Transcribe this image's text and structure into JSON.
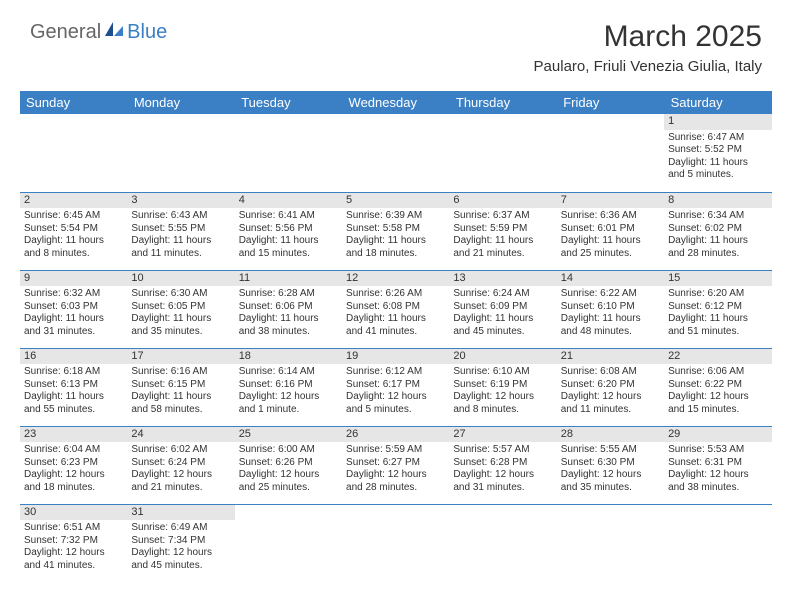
{
  "logo": {
    "part1": "General",
    "part2": "Blue"
  },
  "title": "March 2025",
  "location": "Paularo, Friuli Venezia Giulia, Italy",
  "weekdays": [
    "Sunday",
    "Monday",
    "Tuesday",
    "Wednesday",
    "Thursday",
    "Friday",
    "Saturday"
  ],
  "colors": {
    "header_bg": "#3b7fc4",
    "header_fg": "#ffffff",
    "daynum_bg": "#e6e6e6",
    "border": "#3b7fc4"
  },
  "weeks": [
    [
      null,
      null,
      null,
      null,
      null,
      null,
      {
        "n": "1",
        "sr": "Sunrise: 6:47 AM",
        "ss": "Sunset: 5:52 PM",
        "d1": "Daylight: 11 hours",
        "d2": "and 5 minutes."
      }
    ],
    [
      {
        "n": "2",
        "sr": "Sunrise: 6:45 AM",
        "ss": "Sunset: 5:54 PM",
        "d1": "Daylight: 11 hours",
        "d2": "and 8 minutes."
      },
      {
        "n": "3",
        "sr": "Sunrise: 6:43 AM",
        "ss": "Sunset: 5:55 PM",
        "d1": "Daylight: 11 hours",
        "d2": "and 11 minutes."
      },
      {
        "n": "4",
        "sr": "Sunrise: 6:41 AM",
        "ss": "Sunset: 5:56 PM",
        "d1": "Daylight: 11 hours",
        "d2": "and 15 minutes."
      },
      {
        "n": "5",
        "sr": "Sunrise: 6:39 AM",
        "ss": "Sunset: 5:58 PM",
        "d1": "Daylight: 11 hours",
        "d2": "and 18 minutes."
      },
      {
        "n": "6",
        "sr": "Sunrise: 6:37 AM",
        "ss": "Sunset: 5:59 PM",
        "d1": "Daylight: 11 hours",
        "d2": "and 21 minutes."
      },
      {
        "n": "7",
        "sr": "Sunrise: 6:36 AM",
        "ss": "Sunset: 6:01 PM",
        "d1": "Daylight: 11 hours",
        "d2": "and 25 minutes."
      },
      {
        "n": "8",
        "sr": "Sunrise: 6:34 AM",
        "ss": "Sunset: 6:02 PM",
        "d1": "Daylight: 11 hours",
        "d2": "and 28 minutes."
      }
    ],
    [
      {
        "n": "9",
        "sr": "Sunrise: 6:32 AM",
        "ss": "Sunset: 6:03 PM",
        "d1": "Daylight: 11 hours",
        "d2": "and 31 minutes."
      },
      {
        "n": "10",
        "sr": "Sunrise: 6:30 AM",
        "ss": "Sunset: 6:05 PM",
        "d1": "Daylight: 11 hours",
        "d2": "and 35 minutes."
      },
      {
        "n": "11",
        "sr": "Sunrise: 6:28 AM",
        "ss": "Sunset: 6:06 PM",
        "d1": "Daylight: 11 hours",
        "d2": "and 38 minutes."
      },
      {
        "n": "12",
        "sr": "Sunrise: 6:26 AM",
        "ss": "Sunset: 6:08 PM",
        "d1": "Daylight: 11 hours",
        "d2": "and 41 minutes."
      },
      {
        "n": "13",
        "sr": "Sunrise: 6:24 AM",
        "ss": "Sunset: 6:09 PM",
        "d1": "Daylight: 11 hours",
        "d2": "and 45 minutes."
      },
      {
        "n": "14",
        "sr": "Sunrise: 6:22 AM",
        "ss": "Sunset: 6:10 PM",
        "d1": "Daylight: 11 hours",
        "d2": "and 48 minutes."
      },
      {
        "n": "15",
        "sr": "Sunrise: 6:20 AM",
        "ss": "Sunset: 6:12 PM",
        "d1": "Daylight: 11 hours",
        "d2": "and 51 minutes."
      }
    ],
    [
      {
        "n": "16",
        "sr": "Sunrise: 6:18 AM",
        "ss": "Sunset: 6:13 PM",
        "d1": "Daylight: 11 hours",
        "d2": "and 55 minutes."
      },
      {
        "n": "17",
        "sr": "Sunrise: 6:16 AM",
        "ss": "Sunset: 6:15 PM",
        "d1": "Daylight: 11 hours",
        "d2": "and 58 minutes."
      },
      {
        "n": "18",
        "sr": "Sunrise: 6:14 AM",
        "ss": "Sunset: 6:16 PM",
        "d1": "Daylight: 12 hours",
        "d2": "and 1 minute."
      },
      {
        "n": "19",
        "sr": "Sunrise: 6:12 AM",
        "ss": "Sunset: 6:17 PM",
        "d1": "Daylight: 12 hours",
        "d2": "and 5 minutes."
      },
      {
        "n": "20",
        "sr": "Sunrise: 6:10 AM",
        "ss": "Sunset: 6:19 PM",
        "d1": "Daylight: 12 hours",
        "d2": "and 8 minutes."
      },
      {
        "n": "21",
        "sr": "Sunrise: 6:08 AM",
        "ss": "Sunset: 6:20 PM",
        "d1": "Daylight: 12 hours",
        "d2": "and 11 minutes."
      },
      {
        "n": "22",
        "sr": "Sunrise: 6:06 AM",
        "ss": "Sunset: 6:22 PM",
        "d1": "Daylight: 12 hours",
        "d2": "and 15 minutes."
      }
    ],
    [
      {
        "n": "23",
        "sr": "Sunrise: 6:04 AM",
        "ss": "Sunset: 6:23 PM",
        "d1": "Daylight: 12 hours",
        "d2": "and 18 minutes."
      },
      {
        "n": "24",
        "sr": "Sunrise: 6:02 AM",
        "ss": "Sunset: 6:24 PM",
        "d1": "Daylight: 12 hours",
        "d2": "and 21 minutes."
      },
      {
        "n": "25",
        "sr": "Sunrise: 6:00 AM",
        "ss": "Sunset: 6:26 PM",
        "d1": "Daylight: 12 hours",
        "d2": "and 25 minutes."
      },
      {
        "n": "26",
        "sr": "Sunrise: 5:59 AM",
        "ss": "Sunset: 6:27 PM",
        "d1": "Daylight: 12 hours",
        "d2": "and 28 minutes."
      },
      {
        "n": "27",
        "sr": "Sunrise: 5:57 AM",
        "ss": "Sunset: 6:28 PM",
        "d1": "Daylight: 12 hours",
        "d2": "and 31 minutes."
      },
      {
        "n": "28",
        "sr": "Sunrise: 5:55 AM",
        "ss": "Sunset: 6:30 PM",
        "d1": "Daylight: 12 hours",
        "d2": "and 35 minutes."
      },
      {
        "n": "29",
        "sr": "Sunrise: 5:53 AM",
        "ss": "Sunset: 6:31 PM",
        "d1": "Daylight: 12 hours",
        "d2": "and 38 minutes."
      }
    ],
    [
      {
        "n": "30",
        "sr": "Sunrise: 6:51 AM",
        "ss": "Sunset: 7:32 PM",
        "d1": "Daylight: 12 hours",
        "d2": "and 41 minutes."
      },
      {
        "n": "31",
        "sr": "Sunrise: 6:49 AM",
        "ss": "Sunset: 7:34 PM",
        "d1": "Daylight: 12 hours",
        "d2": "and 45 minutes."
      },
      null,
      null,
      null,
      null,
      null
    ]
  ]
}
